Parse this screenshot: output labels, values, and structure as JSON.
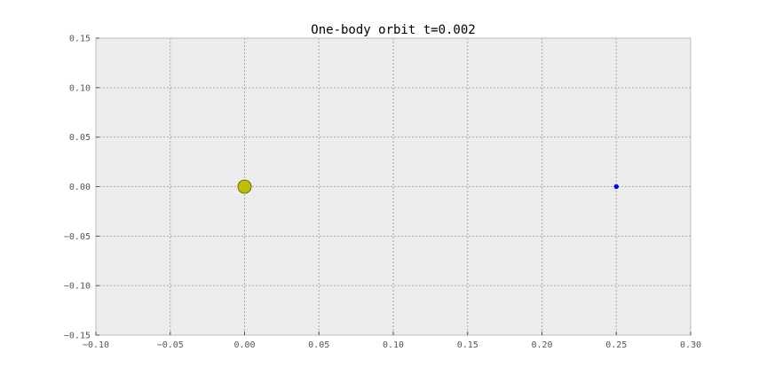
{
  "chart_data": {
    "type": "scatter",
    "title": "One-body orbit t=0.002",
    "xlabel": "",
    "ylabel": "",
    "xlim": [
      -0.1,
      0.3
    ],
    "ylim": [
      -0.15,
      0.15
    ],
    "x_ticks": [
      "−0.10",
      "−0.05",
      "0.00",
      "0.05",
      "0.10",
      "0.15",
      "0.20",
      "0.25",
      "0.30"
    ],
    "x_tick_values": [
      -0.1,
      -0.05,
      0.0,
      0.05,
      0.1,
      0.15,
      0.2,
      0.25,
      0.3
    ],
    "y_ticks": [
      "0.15",
      "0.10",
      "0.05",
      "0.00",
      "−0.05",
      "−0.10",
      "−0.15"
    ],
    "y_tick_values": [
      0.15,
      0.1,
      0.05,
      0.0,
      -0.05,
      -0.1,
      -0.15
    ],
    "grid": true,
    "series": [
      {
        "x": [
          0.0
        ],
        "y": [
          0.0
        ],
        "color": "#bfbf00",
        "marker": "large-circle"
      },
      {
        "x": [
          0.25
        ],
        "y": [
          0.0
        ],
        "color": "#0000ff",
        "marker": "small-dot"
      }
    ],
    "colors": {
      "plot_background": "#ececec",
      "axes_edge": "#bcbcbc",
      "grid": "#a9a9a9"
    }
  }
}
